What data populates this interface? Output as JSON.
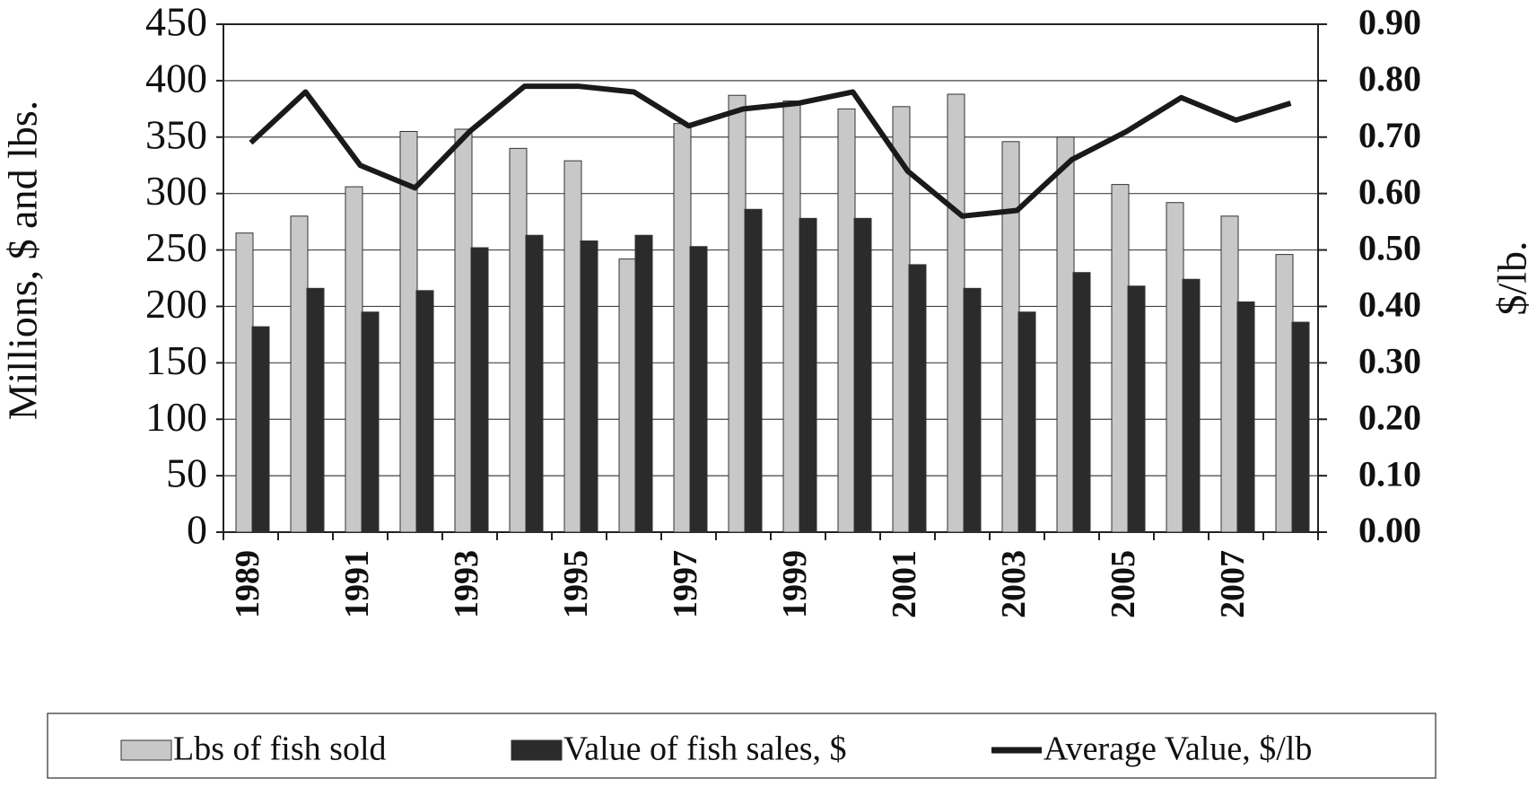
{
  "chart_data": {
    "type": "bar",
    "y_label": "Millions, $ and lbs.",
    "y2_label": "$/lb.",
    "categories": [
      "1989",
      null,
      "1991",
      null,
      "1993",
      null,
      "1995",
      null,
      "1997",
      null,
      "1999",
      null,
      "2001",
      null,
      "2003",
      null,
      "2005",
      null,
      "2007",
      null
    ],
    "series": [
      {
        "name": "Lbs of fish sold",
        "color": "#c8c8c8",
        "axis": "y",
        "type": "bar",
        "values": [
          265,
          280,
          306,
          355,
          357,
          340,
          329,
          242,
          362,
          387,
          382,
          375,
          377,
          388,
          346,
          350,
          308,
          292,
          280,
          246
        ]
      },
      {
        "name": "Value of fish sales, $",
        "color": "#2b2b2b",
        "axis": "y",
        "type": "bar",
        "values": [
          182,
          216,
          195,
          214,
          252,
          263,
          258,
          263,
          253,
          286,
          278,
          278,
          237,
          216,
          195,
          230,
          218,
          224,
          204,
          186
        ]
      },
      {
        "name": "Average Value, $/lb",
        "color": "#1a1a1a",
        "axis": "y2",
        "type": "line",
        "values": [
          0.69,
          0.78,
          0.65,
          0.61,
          0.71,
          0.79,
          0.79,
          0.78,
          0.72,
          0.75,
          0.76,
          0.78,
          0.64,
          0.56,
          0.57,
          0.66,
          0.71,
          0.77,
          0.73,
          0.76
        ]
      }
    ],
    "ylim": [
      0,
      450
    ],
    "yticks": [
      0,
      50,
      100,
      150,
      200,
      250,
      300,
      350,
      400,
      450
    ],
    "y2lim": [
      0,
      0.9
    ],
    "y2ticks": [
      {
        "value": 0,
        "label": "0.00"
      },
      {
        "value": 0.1,
        "label": "0.10"
      },
      {
        "value": 0.2,
        "label": "0.20"
      },
      {
        "value": 0.3,
        "label": "0.30"
      },
      {
        "value": 0.4,
        "label": "0.40"
      },
      {
        "value": 0.5,
        "label": "0.50"
      },
      {
        "value": 0.6,
        "label": "0.60"
      },
      {
        "value": 0.7,
        "label": "0.70"
      },
      {
        "value": 0.8,
        "label": "0.80"
      },
      {
        "value": 0.9,
        "label": "0.90"
      }
    ],
    "grid": true,
    "legend": "bottom"
  }
}
